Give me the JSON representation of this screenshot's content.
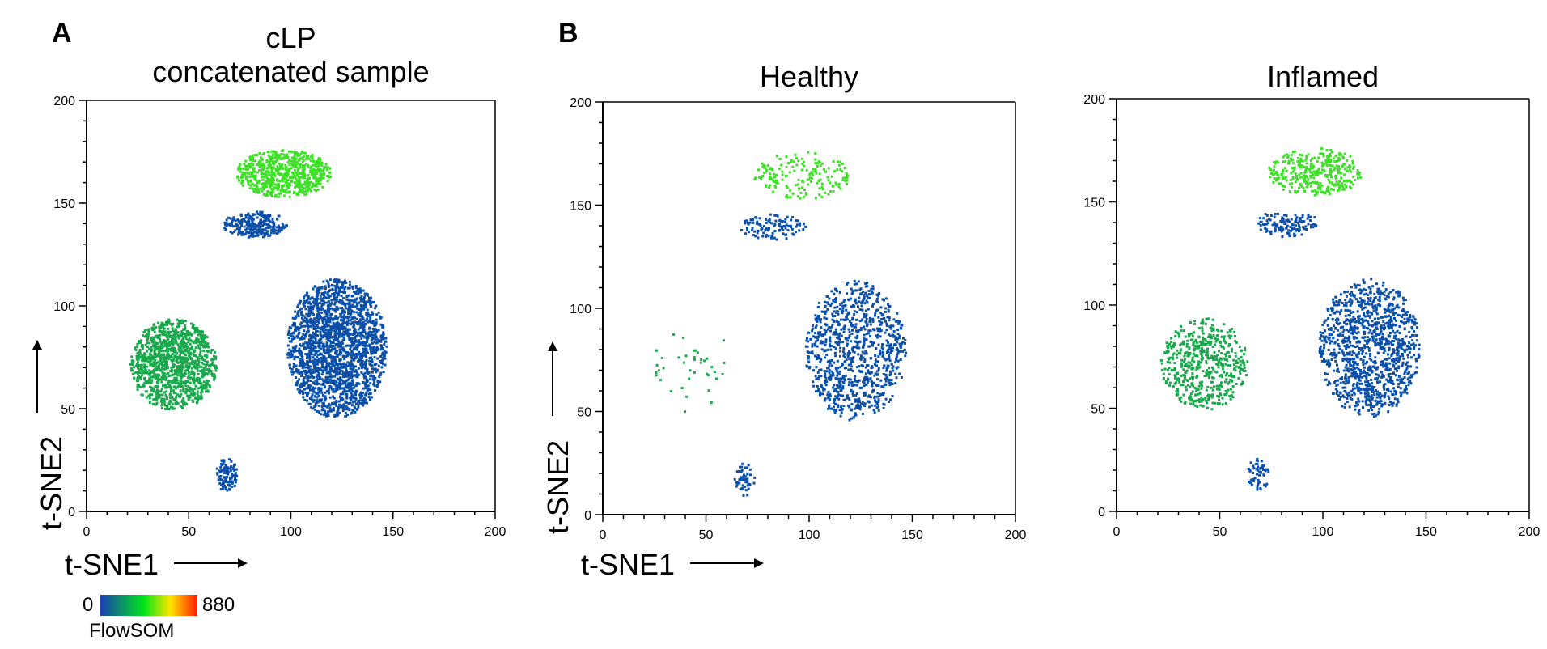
{
  "figure": {
    "panel_labels": {
      "a": "A",
      "b": "B"
    },
    "colorbar": {
      "min_label": "0",
      "max_label": "880",
      "title": "FlowSOM",
      "colors": [
        "#1a3fb5",
        "#00e51a",
        "#ffe600",
        "#ff1a00"
      ]
    },
    "palette": {
      "blue": "#0a4fa8",
      "teal_green": "#1aa84c",
      "bright_green": "#3de026",
      "axis": "#000000"
    }
  },
  "chart_data": [
    {
      "type": "scatter",
      "panel": "A",
      "title_lines": [
        "cLP",
        "concatenated sample"
      ],
      "xlabel": "t-SNE1",
      "ylabel": "t-SNE2",
      "xlim": [
        0,
        200
      ],
      "ylim": [
        0,
        200
      ],
      "xticks": [
        0,
        50,
        100,
        150,
        200
      ],
      "yticks": [
        0,
        50,
        100,
        150,
        200
      ],
      "color_by": "FlowSOM",
      "density": 1.0,
      "regions": [
        {
          "name": "blue-main",
          "center": [
            122,
            80
          ],
          "spread": [
            46,
            64
          ],
          "color": "#0a4fa8"
        },
        {
          "name": "blue-upper",
          "center": [
            82,
            140
          ],
          "spread": [
            30,
            12
          ],
          "color": "#0a4fa8"
        },
        {
          "name": "blue-bottom",
          "center": [
            68,
            18
          ],
          "spread": [
            10,
            16
          ],
          "color": "#0a4fa8"
        },
        {
          "name": "teal-cluster",
          "center": [
            42,
            72
          ],
          "spread": [
            40,
            42
          ],
          "color": "#1aa84c"
        },
        {
          "name": "green-top",
          "center": [
            96,
            165
          ],
          "spread": [
            44,
            22
          ],
          "color": "#3de026"
        }
      ]
    },
    {
      "type": "scatter",
      "panel": "B",
      "title": "Healthy",
      "xlabel": "t-SNE1",
      "ylabel": "t-SNE2",
      "xlim": [
        0,
        200
      ],
      "ylim": [
        0,
        200
      ],
      "xticks": [
        0,
        50,
        100,
        150,
        200
      ],
      "yticks": [
        0,
        50,
        100,
        150,
        200
      ],
      "color_by": "FlowSOM",
      "density": 0.45,
      "regions": [
        {
          "name": "blue-main",
          "center": [
            122,
            80
          ],
          "spread": [
            46,
            64
          ],
          "color": "#0a4fa8"
        },
        {
          "name": "blue-upper",
          "center": [
            82,
            140
          ],
          "spread": [
            30,
            12
          ],
          "color": "#0a4fa8"
        },
        {
          "name": "blue-bottom",
          "center": [
            68,
            18
          ],
          "spread": [
            10,
            16
          ],
          "color": "#0a4fa8"
        },
        {
          "name": "teal-cluster",
          "center": [
            42,
            72
          ],
          "spread": [
            40,
            42
          ],
          "color": "#1aa84c",
          "weight": 0.08
        },
        {
          "name": "green-top",
          "center": [
            96,
            165
          ],
          "spread": [
            44,
            22
          ],
          "color": "#3de026",
          "weight": 0.55
        }
      ]
    },
    {
      "type": "scatter",
      "panel": "B",
      "title": "Inflamed",
      "xlabel": "",
      "ylabel": "",
      "xlim": [
        0,
        200
      ],
      "ylim": [
        0,
        200
      ],
      "xticks": [
        0,
        50,
        100,
        150,
        200
      ],
      "yticks": [
        0,
        50,
        100,
        150,
        200
      ],
      "color_by": "FlowSOM",
      "density": 0.55,
      "regions": [
        {
          "name": "blue-main",
          "center": [
            122,
            80
          ],
          "spread": [
            46,
            64
          ],
          "color": "#0a4fa8"
        },
        {
          "name": "blue-upper",
          "center": [
            82,
            140
          ],
          "spread": [
            30,
            12
          ],
          "color": "#0a4fa8"
        },
        {
          "name": "blue-bottom",
          "center": [
            68,
            18
          ],
          "spread": [
            10,
            16
          ],
          "color": "#0a4fa8"
        },
        {
          "name": "teal-cluster",
          "center": [
            42,
            72
          ],
          "spread": [
            40,
            42
          ],
          "color": "#1aa84c",
          "weight": 0.85
        },
        {
          "name": "green-top",
          "center": [
            96,
            165
          ],
          "spread": [
            44,
            22
          ],
          "color": "#3de026",
          "weight": 0.9
        }
      ]
    }
  ]
}
